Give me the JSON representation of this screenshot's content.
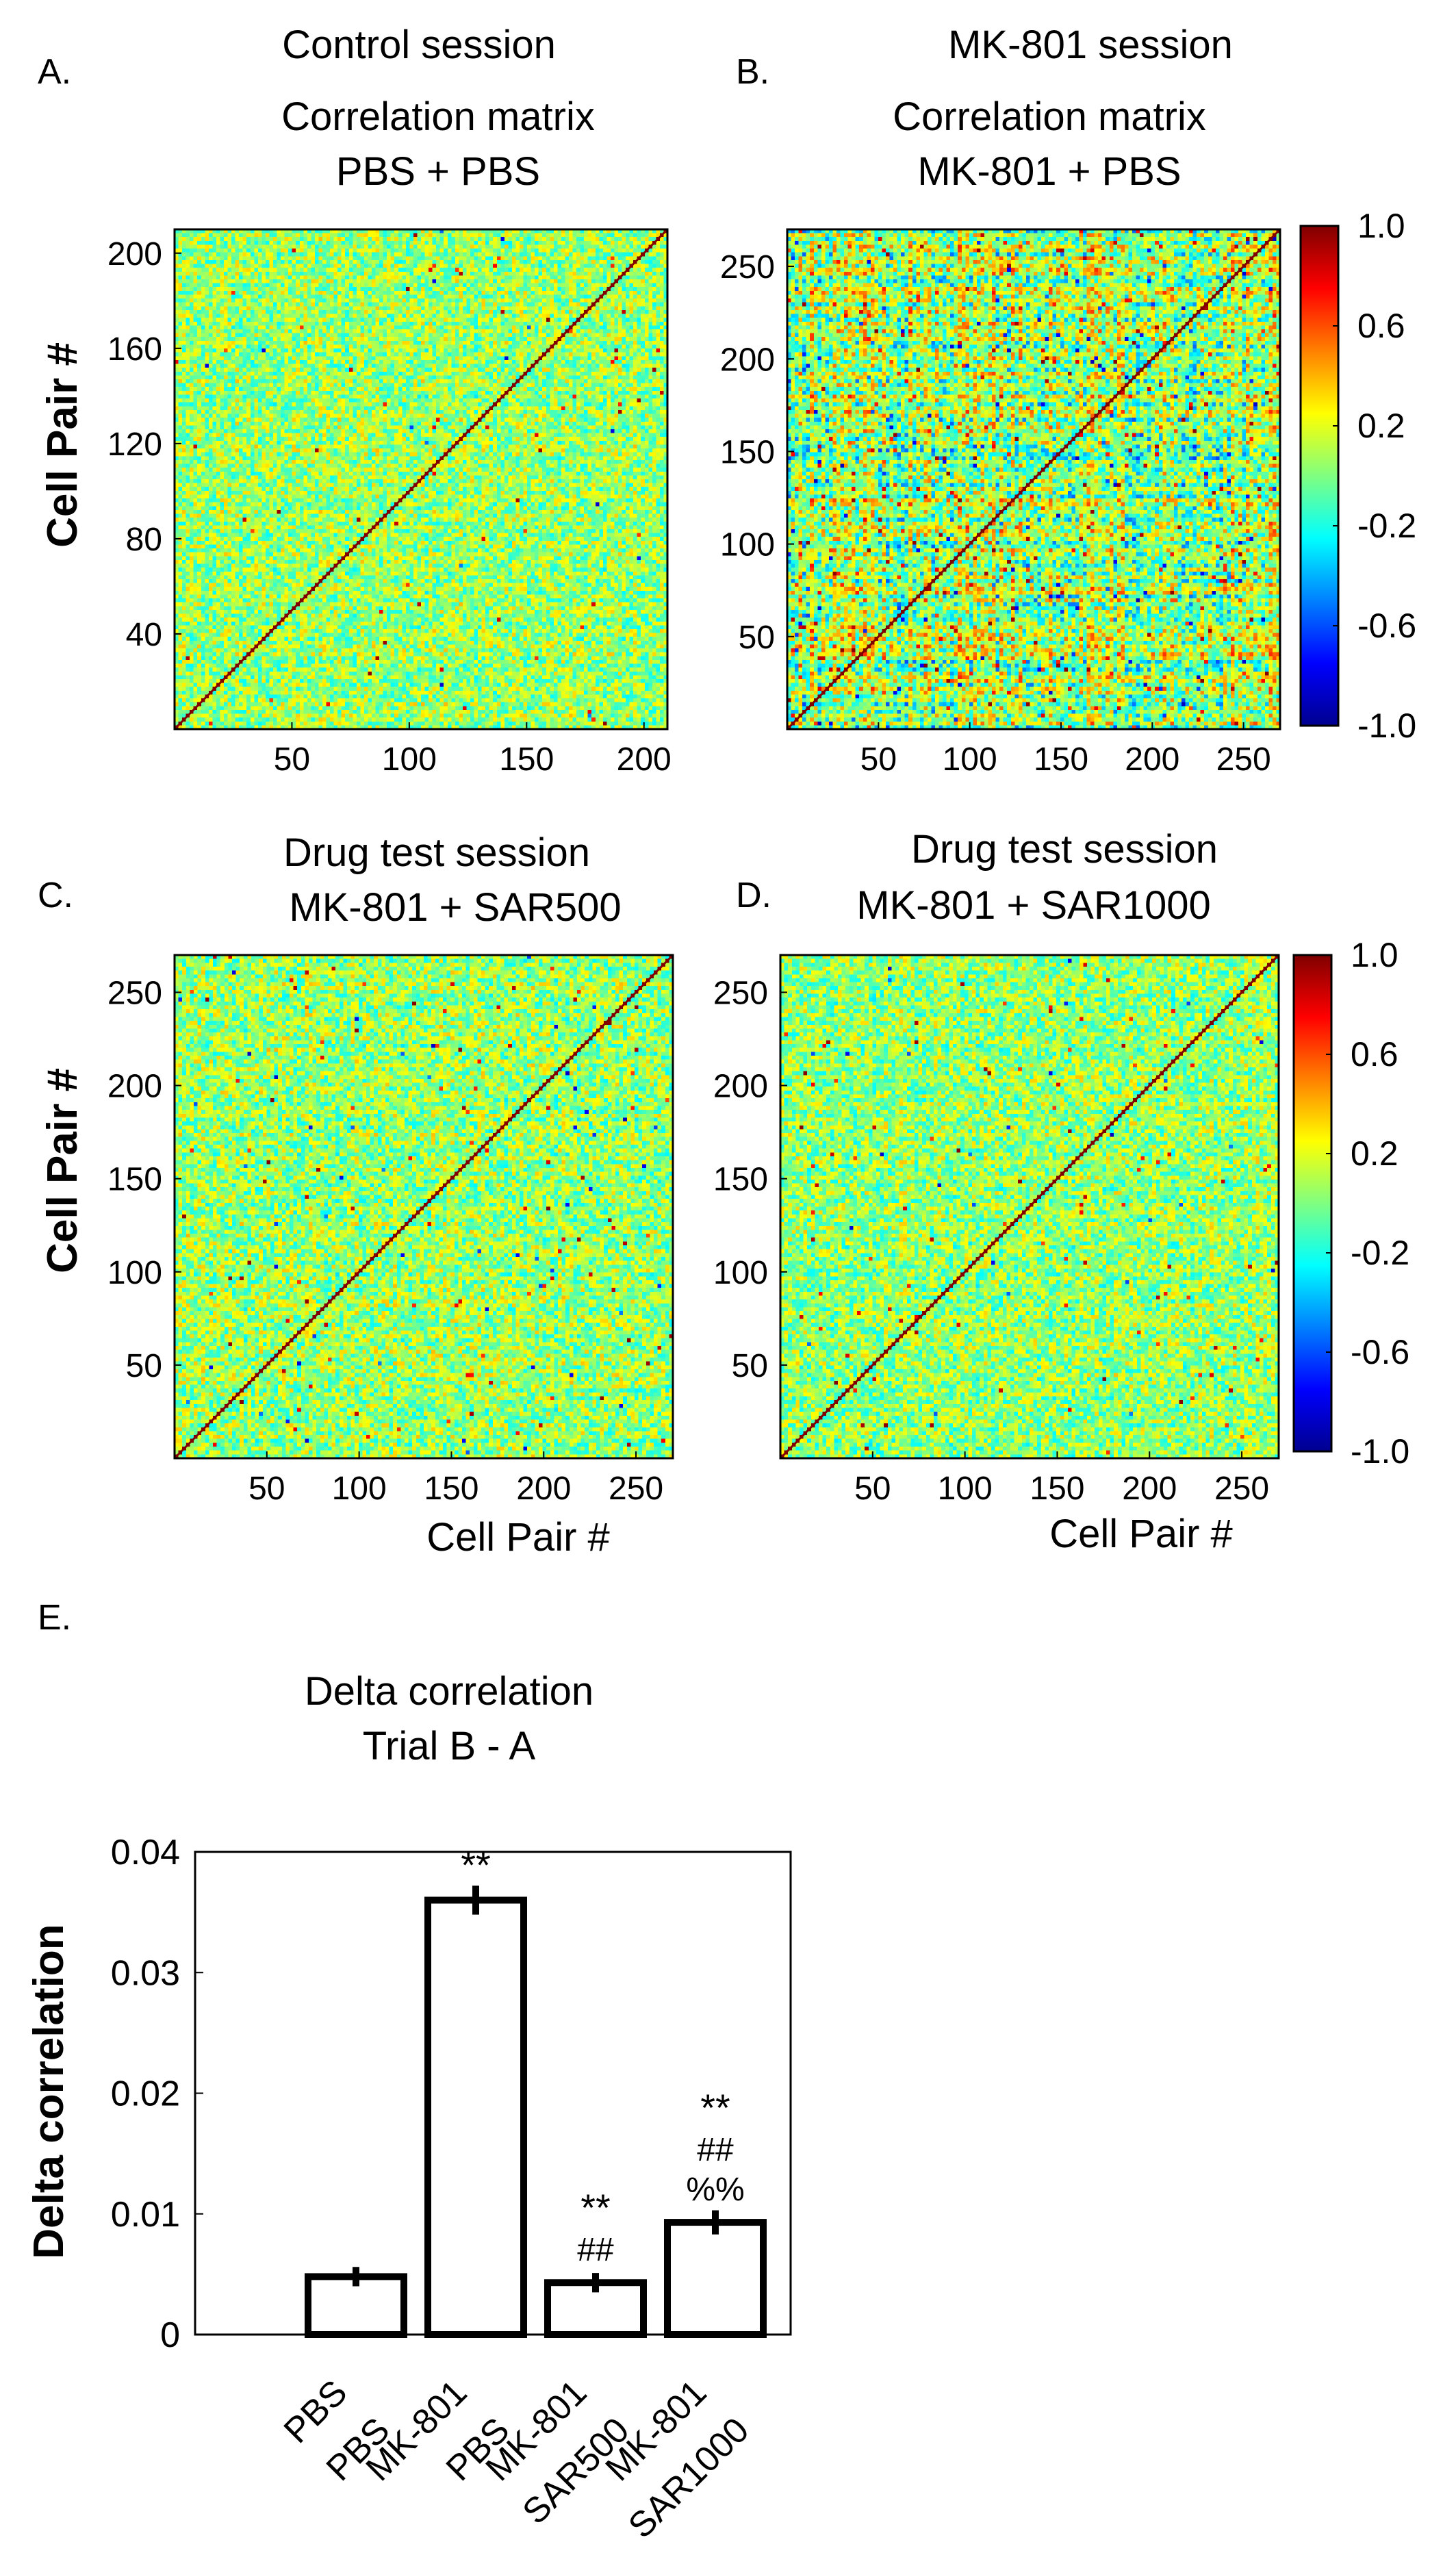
{
  "figure": {
    "panel_letters": {
      "a": "A.",
      "b": "B.",
      "c": "C.",
      "d": "D.",
      "e": "E."
    },
    "colorbar_ticks": [
      "1.0",
      "0.6",
      "0.2",
      "-0.2",
      "-0.6",
      "-1.0"
    ],
    "colormap": [
      "#00008f",
      "#0000ff",
      "#0080ff",
      "#00ffff",
      "#80ff80",
      "#ffff00",
      "#ff8000",
      "#ff0000",
      "#800000"
    ]
  },
  "chart_data": [
    {
      "id": "A",
      "type": "heatmap",
      "session": "Control session",
      "title_lines": [
        "Correlation matrix",
        "PBS + PBS"
      ],
      "ylabel": "Cell Pair #",
      "xlabel": "",
      "n": 210,
      "xticks": [
        "50",
        "100",
        "150",
        "200"
      ],
      "yticks": [
        "40",
        "80",
        "120",
        "160",
        "200"
      ],
      "value_range": [
        -1.0,
        1.0
      ],
      "diagonal": 1.0,
      "texture": {
        "seed": 11,
        "mean": 0.05,
        "spread": 0.28,
        "hot_rate": 0.004
      }
    },
    {
      "id": "B",
      "type": "heatmap",
      "session": "MK-801 session",
      "title_lines": [
        "Correlation matrix",
        "MK-801 + PBS"
      ],
      "ylabel": "",
      "xlabel": "",
      "n": 270,
      "xticks": [
        "50",
        "100",
        "150",
        "200",
        "250"
      ],
      "yticks": [
        "50",
        "100",
        "150",
        "200",
        "250"
      ],
      "value_range": [
        -1.0,
        1.0
      ],
      "diagonal": 1.0,
      "texture": {
        "seed": 23,
        "mean": 0.06,
        "spread": 0.36,
        "hot_rate": 0.02
      }
    },
    {
      "id": "C",
      "type": "heatmap",
      "session": "",
      "title_lines": [
        "Drug test session",
        "MK-801 + SAR500"
      ],
      "ylabel": "Cell Pair #",
      "xlabel": "Cell Pair #",
      "n": 270,
      "xticks": [
        "50",
        "100",
        "150",
        "200",
        "250"
      ],
      "yticks": [
        "50",
        "100",
        "150",
        "200",
        "250"
      ],
      "value_range": [
        -1.0,
        1.0
      ],
      "diagonal": 1.0,
      "texture": {
        "seed": 37,
        "mean": 0.05,
        "spread": 0.29,
        "hot_rate": 0.007
      }
    },
    {
      "id": "D",
      "type": "heatmap",
      "session": "",
      "title_lines": [
        "Drug test session",
        "MK-801 + SAR1000"
      ],
      "ylabel": "",
      "xlabel": "Cell Pair #",
      "n": 270,
      "xticks": [
        "50",
        "100",
        "150",
        "200",
        "250"
      ],
      "yticks": [
        "50",
        "100",
        "150",
        "200",
        "250"
      ],
      "value_range": [
        -1.0,
        1.0
      ],
      "diagonal": 1.0,
      "texture": {
        "seed": 41,
        "mean": 0.04,
        "spread": 0.28,
        "hot_rate": 0.005
      }
    },
    {
      "id": "E",
      "type": "bar",
      "title_lines": [
        "Delta correlation",
        "Trial B - A"
      ],
      "ylabel": "Delta correlation",
      "categories": [
        [
          "PBS",
          "PBS"
        ],
        [
          "MK-801",
          "PBS"
        ],
        [
          "MK-801",
          "SAR500"
        ],
        [
          "MK-801",
          "SAR1000"
        ]
      ],
      "values": [
        0.0048,
        0.036,
        0.0043,
        0.0093
      ],
      "errors": [
        0.0008,
        0.0012,
        0.0008,
        0.001
      ],
      "annotations": [
        [],
        [
          "**"
        ],
        [
          "**",
          "##"
        ],
        [
          "**",
          "##",
          "%%"
        ]
      ],
      "ylim": [
        0,
        0.04
      ],
      "yticks": [
        0,
        0.01,
        0.02,
        0.03,
        0.04
      ],
      "ytick_labels": [
        "0",
        "0.01",
        "0.02",
        "0.03",
        "0.04"
      ]
    }
  ]
}
